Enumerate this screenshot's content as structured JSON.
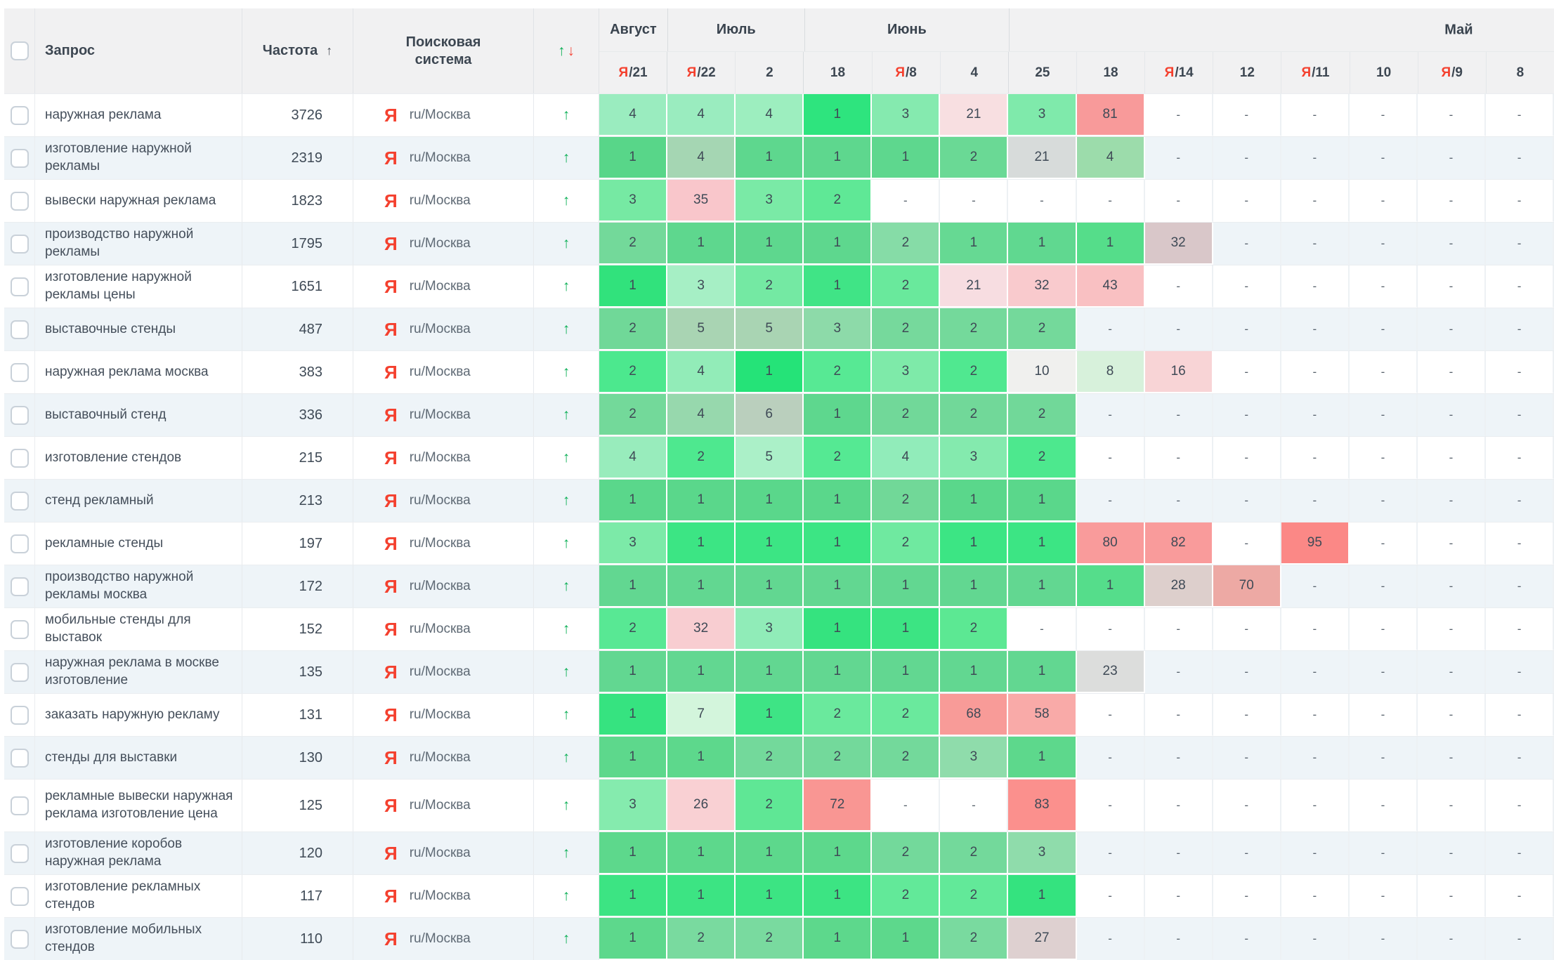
{
  "colors": {
    "header_bg": "#f1f1f2",
    "row_stripe": "#eef4f8",
    "yandex_red": "#f4402e",
    "trend_green": "#0caf56",
    "trend_red": "#f4473a",
    "text_dark": "#3d4752",
    "text_gray": "#5f6a75"
  },
  "header": {
    "columns": {
      "query": "Запрос",
      "frequency": "Частота",
      "frequency_sort": "↑",
      "engine": "Поисковая система",
      "trend_up": "↑",
      "trend_down": "↓"
    },
    "months": [
      {
        "label": "Август",
        "span": 1
      },
      {
        "label": "Июль",
        "span": 2
      },
      {
        "label": "Июнь",
        "span": 3
      },
      {
        "label": "Май",
        "span": 8,
        "label_align": "offset"
      }
    ],
    "dates": [
      {
        "label": "21",
        "yandex": true
      },
      {
        "label": "22",
        "yandex": true
      },
      {
        "label": "2",
        "yandex": false
      },
      {
        "label": "18",
        "yandex": false
      },
      {
        "label": "8",
        "yandex": true
      },
      {
        "label": "4",
        "yandex": false
      },
      {
        "label": "25",
        "yandex": false
      },
      {
        "label": "18",
        "yandex": false
      },
      {
        "label": "14",
        "yandex": true
      },
      {
        "label": "12",
        "yandex": false
      },
      {
        "label": "11",
        "yandex": true
      },
      {
        "label": "10",
        "yandex": false
      },
      {
        "label": "9",
        "yandex": true
      },
      {
        "label": "8",
        "yandex": false
      }
    ]
  },
  "engine": {
    "icon": "Я",
    "label": "ru/Москва"
  },
  "trend_symbol": "↑",
  "rows": [
    {
      "query": "наружная реклама",
      "frequency": "3726",
      "positions": [
        "4",
        "4",
        "4",
        "1",
        "3",
        "21",
        "3",
        "81",
        "-",
        "-",
        "-",
        "-",
        "-",
        "-"
      ],
      "cell_colors": [
        "#9aecbf",
        "#9aecbf",
        "#9deebf",
        "#2ee47e",
        "#85eaaf",
        "#f8dfe1",
        "#7feaab",
        "#f89a9a",
        "",
        "",
        "",
        "",
        "",
        ""
      ]
    },
    {
      "query": "изготовление наружной рекламы",
      "frequency": "2319",
      "positions": [
        "1",
        "4",
        "1",
        "1",
        "1",
        "2",
        "21",
        "4",
        "-",
        "-",
        "-",
        "-",
        "-",
        "-"
      ],
      "cell_colors": [
        "#58d689",
        "#a5d6b3",
        "#5ed78e",
        "#5ed78e",
        "#5ed78e",
        "#6ad995",
        "#d7dbda",
        "#9cdcab",
        "",
        "",
        "",
        "",
        "",
        ""
      ]
    },
    {
      "query": "вывески наружная реклама",
      "frequency": "1823",
      "positions": [
        "3",
        "35",
        "3",
        "2",
        "-",
        "-",
        "-",
        "-",
        "-",
        "-",
        "-",
        "-",
        "-",
        "-"
      ],
      "cell_colors": [
        "#76e9a3",
        "#f9c6cb",
        "#7aeaa6",
        "#5fe896",
        "",
        "",
        "",
        "",
        "",
        "",
        "",
        "",
        "",
        ""
      ]
    },
    {
      "query": "производство наружной рекламы",
      "frequency": "1795",
      "positions": [
        "2",
        "1",
        "1",
        "1",
        "2",
        "1",
        "1",
        "1",
        "32",
        "-",
        "-",
        "-",
        "-",
        "-"
      ],
      "cell_colors": [
        "#73d99a",
        "#5ed78e",
        "#5ed78e",
        "#5ed78e",
        "#86dca7",
        "#66d993",
        "#60d890",
        "#55dd8a",
        "#d9c7c9",
        "",
        "",
        "",
        "",
        ""
      ]
    },
    {
      "query": "изготовление наружной рекламы цены",
      "frequency": "1651",
      "positions": [
        "1",
        "3",
        "2",
        "1",
        "2",
        "21",
        "32",
        "43",
        "-",
        "-",
        "-",
        "-",
        "-",
        "-"
      ],
      "cell_colors": [
        "#31e27c",
        "#a6efc5",
        "#74e9a3",
        "#40e486",
        "#69e99c",
        "#f7dde1",
        "#f9cacd",
        "#f9c0c2",
        "",
        "",
        "",
        "",
        "",
        ""
      ]
    },
    {
      "query": "выставочные стенды",
      "frequency": "487",
      "positions": [
        "2",
        "5",
        "5",
        "3",
        "2",
        "2",
        "2",
        "-",
        "-",
        "-",
        "-",
        "-",
        "-",
        "-"
      ],
      "cell_colors": [
        "#70d898",
        "#a9d4b3",
        "#a9d4b3",
        "#8ddaa9",
        "#76d99c",
        "#74d99b",
        "#74d99b",
        "",
        "",
        "",
        "",
        "",
        "",
        ""
      ]
    },
    {
      "query": "наружная реклама москва",
      "frequency": "383",
      "positions": [
        "2",
        "4",
        "1",
        "2",
        "3",
        "2",
        "10",
        "8",
        "16",
        "-",
        "-",
        "-",
        "-",
        "-"
      ],
      "cell_colors": [
        "#4ce88e",
        "#92ecb8",
        "#25e378",
        "#57e994",
        "#7eeaa9",
        "#50e890",
        "#f0f0ee",
        "#d7f1db",
        "#f8d4d6",
        "",
        "",
        "",
        "",
        ""
      ]
    },
    {
      "query": "выставочный стенд",
      "frequency": "336",
      "positions": [
        "2",
        "4",
        "6",
        "1",
        "2",
        "2",
        "2",
        "-",
        "-",
        "-",
        "-",
        "-",
        "-",
        "-"
      ],
      "cell_colors": [
        "#73d99a",
        "#97d8ad",
        "#bacfbd",
        "#5ed78e",
        "#71d899",
        "#71d899",
        "#71d899",
        "",
        "",
        "",
        "",
        "",
        "",
        ""
      ]
    },
    {
      "query": "изготовление стендов",
      "frequency": "215",
      "positions": [
        "4",
        "2",
        "5",
        "2",
        "4",
        "3",
        "2",
        "-",
        "-",
        "-",
        "-",
        "-",
        "-",
        "-"
      ],
      "cell_colors": [
        "#98ecbc",
        "#4ee88f",
        "#abf0c8",
        "#55e993",
        "#91ecba",
        "#84eaae",
        "#4de88e",
        "",
        "",
        "",
        "",
        "",
        "",
        ""
      ]
    },
    {
      "query": "стенд рекламный",
      "frequency": "213",
      "positions": [
        "1",
        "1",
        "1",
        "1",
        "2",
        "1",
        "1",
        "-",
        "-",
        "-",
        "-",
        "-",
        "-",
        "-"
      ],
      "cell_colors": [
        "#5ad78b",
        "#5ad78b",
        "#5ad78b",
        "#5ad78b",
        "#71d898",
        "#5ad78b",
        "#5ad78b",
        "",
        "",
        "",
        "",
        "",
        "",
        ""
      ]
    },
    {
      "query": "рекламные стенды",
      "frequency": "197",
      "positions": [
        "3",
        "1",
        "1",
        "1",
        "2",
        "1",
        "1",
        "80",
        "82",
        "-",
        "95",
        "-",
        "-",
        "-"
      ],
      "cell_colors": [
        "#7ceaa8",
        "#3ce584",
        "#3ce584",
        "#3ce584",
        "#6fe9a0",
        "#3ce584",
        "#3ce584",
        "#f99b9b",
        "#f99b9b",
        "",
        "#fb8886",
        "",
        "",
        ""
      ]
    },
    {
      "query": "производство наружной рекламы москва",
      "frequency": "172",
      "positions": [
        "1",
        "1",
        "1",
        "1",
        "1",
        "1",
        "1",
        "1",
        "28",
        "70",
        "-",
        "-",
        "-",
        "-"
      ],
      "cell_colors": [
        "#62d791",
        "#62d791",
        "#62d791",
        "#62d791",
        "#62d791",
        "#62d791",
        "#62d791",
        "#55dd8b",
        "#ddcfcc",
        "#eda9a4",
        "",
        "",
        "",
        ""
      ]
    },
    {
      "query": "мобильные стенды для выставок",
      "frequency": "152",
      "positions": [
        "2",
        "32",
        "3",
        "1",
        "1",
        "2",
        "-",
        "-",
        "-",
        "-",
        "-",
        "-",
        "-",
        "-"
      ],
      "cell_colors": [
        "#58e894",
        "#f8cdd1",
        "#90ecb8",
        "#35e37f",
        "#3ce483",
        "#5ce893",
        "",
        "",
        "",
        "",
        "",
        "",
        "",
        ""
      ]
    },
    {
      "query": "наружная реклама в москве изготовление",
      "frequency": "135",
      "positions": [
        "1",
        "1",
        "1",
        "1",
        "1",
        "1",
        "1",
        "23",
        "-",
        "-",
        "-",
        "-",
        "-",
        "-"
      ],
      "cell_colors": [
        "#62d791",
        "#62d791",
        "#62d791",
        "#62d791",
        "#62d791",
        "#62d791",
        "#62d791",
        "#dcdddc",
        "",
        "",
        "",
        "",
        "",
        ""
      ]
    },
    {
      "query": "заказать наружную рекламу",
      "frequency": "131",
      "positions": [
        "1",
        "7",
        "1",
        "2",
        "2",
        "68",
        "58",
        "-",
        "-",
        "-",
        "-",
        "-",
        "-",
        "-"
      ],
      "cell_colors": [
        "#36e380",
        "#d3f5dc",
        "#3ee485",
        "#6ae99d",
        "#6ae99d",
        "#f89b98",
        "#f9aaa8",
        "",
        "",
        "",
        "",
        "",
        "",
        ""
      ]
    },
    {
      "query": "стенды для выставки",
      "frequency": "130",
      "positions": [
        "1",
        "1",
        "2",
        "2",
        "2",
        "3",
        "1",
        "-",
        "-",
        "-",
        "-",
        "-",
        "-",
        "-"
      ],
      "cell_colors": [
        "#5dd88c",
        "#5dd88c",
        "#73d99b",
        "#73d99b",
        "#73d99b",
        "#8fdcab",
        "#5dd88c",
        "",
        "",
        "",
        "",
        "",
        "",
        ""
      ]
    },
    {
      "query": "рекламные вывески наружная реклама изготовление цена",
      "frequency": "125",
      "positions": [
        "3",
        "26",
        "2",
        "72",
        "-",
        "-",
        "83",
        "-",
        "-",
        "-",
        "-",
        "-",
        "-",
        "-"
      ],
      "cell_colors": [
        "#85ebae",
        "#f9d0d3",
        "#5fe795",
        "#f99693",
        "",
        "",
        "#fb908d",
        "",
        "",
        "",
        "",
        "",
        "",
        ""
      ]
    },
    {
      "query": "изготовление коробов наружная реклама",
      "frequency": "120",
      "positions": [
        "1",
        "1",
        "1",
        "1",
        "2",
        "2",
        "3",
        "-",
        "-",
        "-",
        "-",
        "-",
        "-",
        "-"
      ],
      "cell_colors": [
        "#5dd88c",
        "#5dd88c",
        "#5dd88c",
        "#5dd88c",
        "#73d99b",
        "#73d99b",
        "#8fdcab",
        "",
        "",
        "",
        "",
        "",
        "",
        ""
      ]
    },
    {
      "query": "изготовление рекламных стендов",
      "frequency": "117",
      "positions": [
        "1",
        "1",
        "1",
        "1",
        "2",
        "2",
        "1",
        "-",
        "-",
        "-",
        "-",
        "-",
        "-",
        "-"
      ],
      "cell_colors": [
        "#3ce483",
        "#3ce483",
        "#3ce483",
        "#3ce483",
        "#62e999",
        "#62e999",
        "#34e37f",
        "",
        "",
        "",
        "",
        "",
        "",
        ""
      ]
    },
    {
      "query": "изготовление мобильных стендов",
      "frequency": "110",
      "positions": [
        "1",
        "2",
        "2",
        "1",
        "1",
        "2",
        "27",
        "-",
        "-",
        "-",
        "-",
        "-",
        "-",
        "-"
      ],
      "cell_colors": [
        "#5dd88c",
        "#79da9f",
        "#79da9f",
        "#5dd88c",
        "#5dd88c",
        "#79da9f",
        "#ded0d0",
        "",
        "",
        "",
        "",
        "",
        "",
        ""
      ]
    }
  ]
}
